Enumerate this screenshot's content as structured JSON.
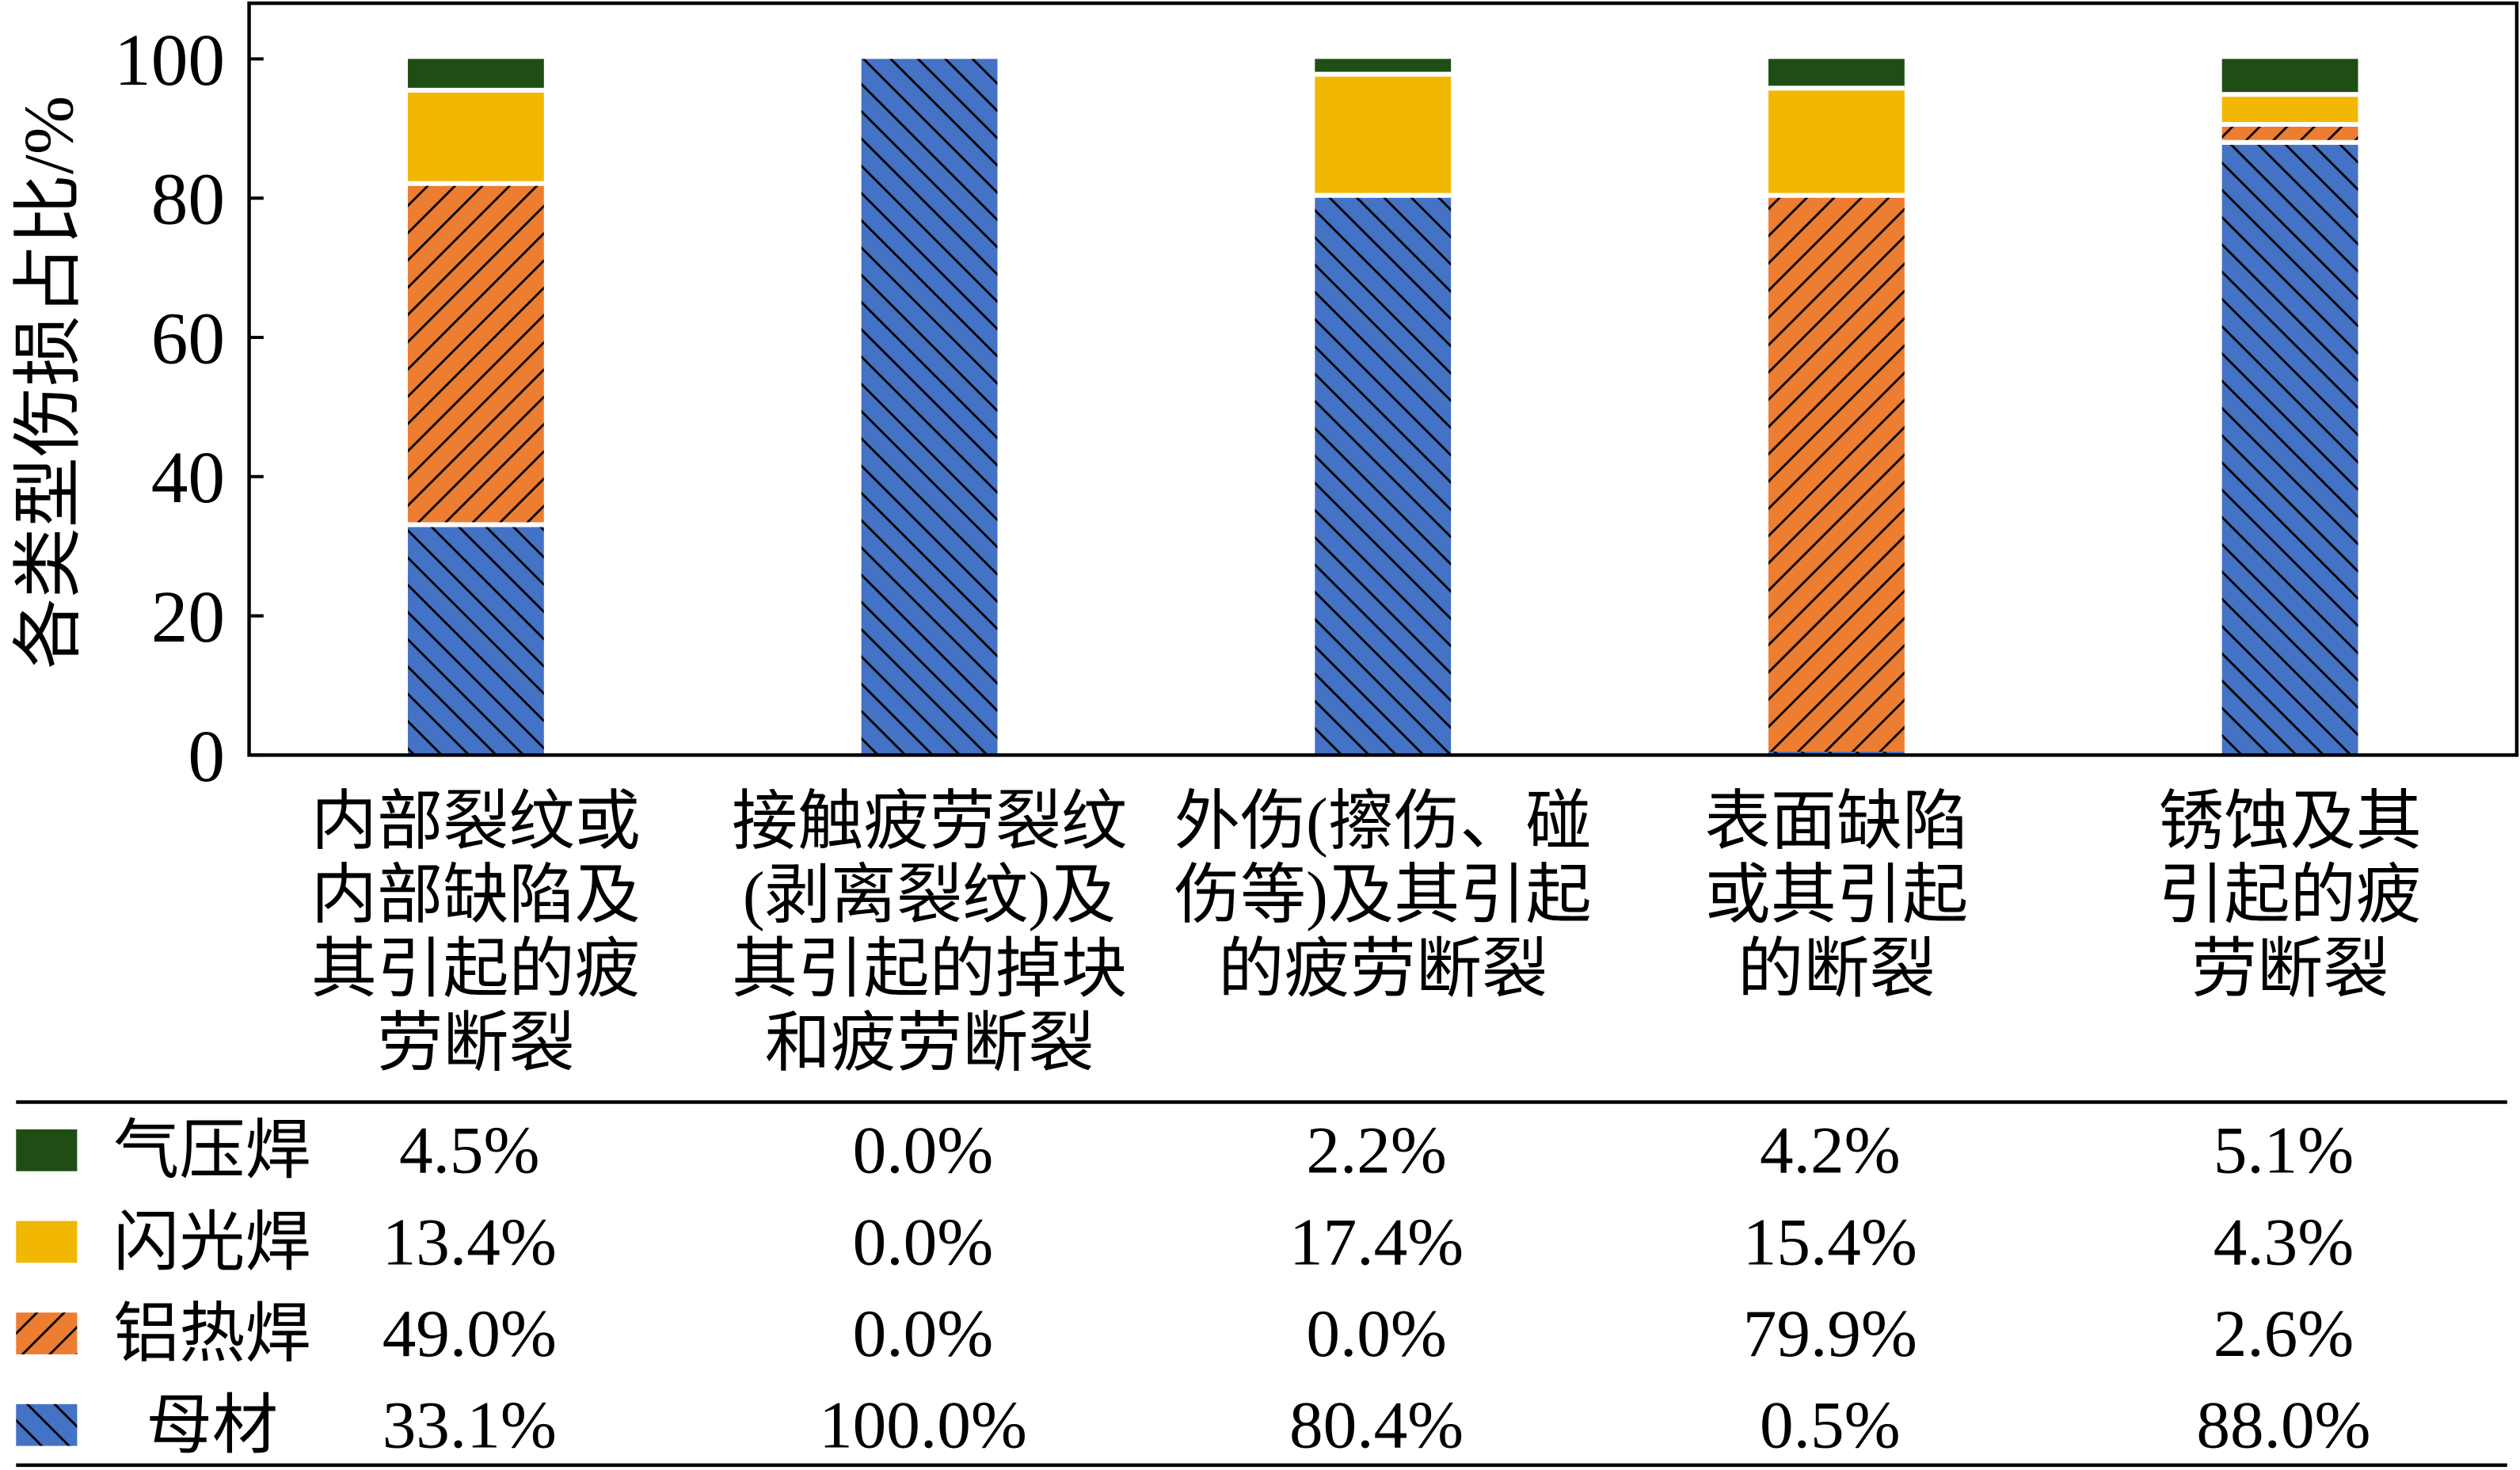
{
  "chart_data": {
    "type": "bar",
    "stacked": true,
    "categories": [
      [
        "内部裂纹或",
        "内部缺陷及",
        "其引起的疲",
        "劳断裂"
      ],
      [
        "接触疲劳裂纹",
        "(剥离裂纹)及",
        "其引起的掉块",
        "和疲劳断裂"
      ],
      [
        "外伤(擦伤、碰",
        "伤等)及其引起",
        "的疲劳断裂"
      ],
      [
        "表面缺陷",
        "或其引起",
        "的断裂"
      ],
      [
        "锈蚀及其",
        "引起的疲",
        "劳断裂"
      ]
    ],
    "series": [
      {
        "name": "母材",
        "values": [
          33.1,
          100.0,
          80.4,
          0.5,
          88.0
        ],
        "labels": [
          "33.1%",
          "100.0%",
          "80.4%",
          "0.5%",
          "88.0%"
        ],
        "color": "#4472c4",
        "hatch": "backslash"
      },
      {
        "name": "铝热焊",
        "values": [
          49.0,
          0.0,
          0.0,
          79.9,
          2.6
        ],
        "labels": [
          "49.0%",
          "0.0%",
          "0.0%",
          "79.9%",
          "2.6%"
        ],
        "color": "#ed7d31",
        "hatch": "slash"
      },
      {
        "name": "闪光焊",
        "values": [
          13.4,
          0.0,
          17.4,
          15.4,
          4.3
        ],
        "labels": [
          "13.4%",
          "0.0%",
          "17.4%",
          "15.4%",
          "4.3%"
        ],
        "color": "#f2b700",
        "hatch": "none"
      },
      {
        "name": "气压焊",
        "values": [
          4.5,
          0.0,
          2.2,
          4.2,
          5.1
        ],
        "labels": [
          "4.5%",
          "0.0%",
          "2.2%",
          "4.2%",
          "5.1%"
        ],
        "color": "#1f4e14",
        "hatch": "none"
      }
    ],
    "ylabel": "各类型伤损占比/%",
    "ylim": [
      0,
      108
    ],
    "yticks": [
      0,
      20,
      40,
      60,
      80,
      100
    ],
    "grid": false,
    "legend": "bottom"
  }
}
